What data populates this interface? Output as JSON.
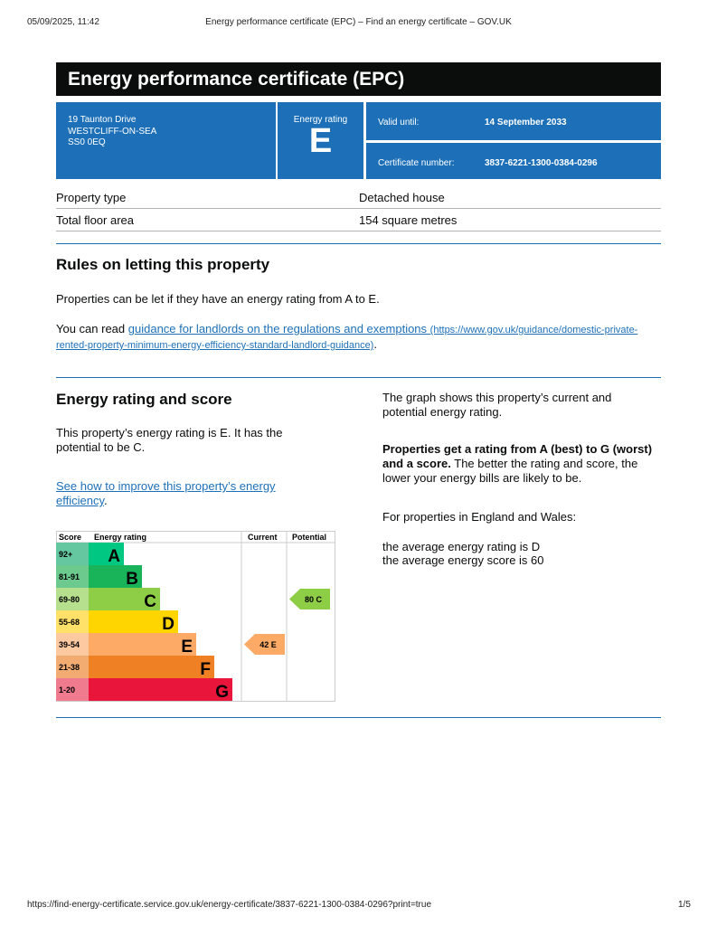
{
  "print_header": {
    "datetime": "05/09/2025, 11:42",
    "title": "Energy performance certificate (EPC) – Find an energy certificate – GOV.UK"
  },
  "print_footer": {
    "url": "https://find-energy-certificate.service.gov.uk/energy-certificate/3837-6221-1300-0384-0296?print=true",
    "page": "1/5"
  },
  "title": "Energy performance certificate (EPC)",
  "address": [
    "19 Taunton Drive",
    "WESTCLIFF-ON-SEA",
    "SS0 0EQ"
  ],
  "rating_box": {
    "label": "Energy rating",
    "value": "E"
  },
  "valid_until": {
    "label": "Valid until:",
    "value": "14 September 2033"
  },
  "certificate_number": {
    "label": "Certificate number:",
    "value": "3837-6221-1300-0384-0296"
  },
  "property": [
    {
      "label": "Property type",
      "value": "Detached house"
    },
    {
      "label": "Total floor area",
      "value": "154 square metres"
    }
  ],
  "letting": {
    "heading": "Rules on letting this property",
    "text": "Properties can be let if they have an energy rating from A to E.",
    "read_prefix": "You can read ",
    "link": "guidance for landlords on the regulations and exemptions",
    "link_url": "(https://www.gov.uk/guidance/domestic-private-rented-property-minimum-energy-efficiency-standard-landlord-guidance)",
    "suffix": "."
  },
  "score": {
    "heading": "Energy rating and score",
    "text": "This property’s energy rating is E. It has the potential to be C.",
    "link": "See how to improve this property’s energy efficiency",
    "link_suffix": ".",
    "right_p1": "The graph shows this property’s current and potential energy rating.",
    "right_bold": "Properties get a rating from A (best) to G (worst) and a score.",
    "right_p2": " The better the rating and score, the lower your energy bills are likely to be.",
    "right_p3": "For properties in England and Wales:",
    "avg_rating": "the average energy rating is D",
    "avg_score": "the average energy score is 60"
  },
  "chart_data": {
    "type": "bar",
    "headers": [
      "Score",
      "Energy rating",
      "Current",
      "Potential"
    ],
    "bands": [
      {
        "letter": "A",
        "range": "92+",
        "color": "#00c781",
        "tint": "#64c7a0"
      },
      {
        "letter": "B",
        "range": "81-91",
        "color": "#19b459",
        "tint": "#6cca8f"
      },
      {
        "letter": "C",
        "range": "69-80",
        "color": "#8dce46",
        "tint": "#b7e08e"
      },
      {
        "letter": "D",
        "range": "55-68",
        "color": "#ffd500",
        "tint": "#ffe16a"
      },
      {
        "letter": "E",
        "range": "39-54",
        "color": "#fcaa65",
        "tint": "#fcc9a1"
      },
      {
        "letter": "F",
        "range": "21-38",
        "color": "#ef8023",
        "tint": "#f2ac72"
      },
      {
        "letter": "G",
        "range": "1-20",
        "color": "#e9153b",
        "tint": "#f07a8e"
      }
    ],
    "current": {
      "score": 42,
      "band": "E",
      "label": "42  E"
    },
    "potential": {
      "score": 80,
      "band": "C",
      "label": "80  C"
    }
  }
}
